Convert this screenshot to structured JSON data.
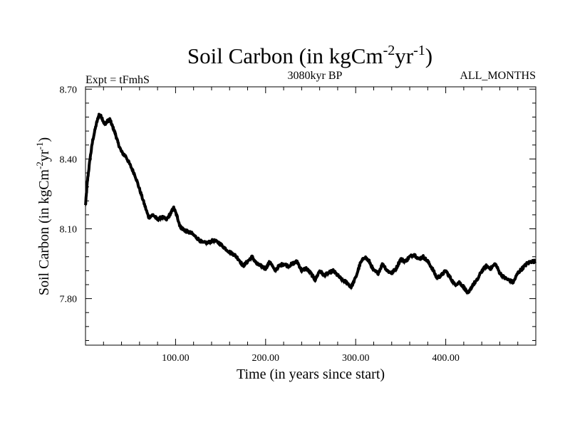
{
  "header": {
    "title_main": "Soil Carbon (in kgCm",
    "title_sup1": "-2",
    "title_mid": "yr",
    "title_sup2": "-1",
    "title_end": ")",
    "left_label": "Expt = tFmhS",
    "center_label": "3080kyr BP",
    "right_label": "ALL_MONTHS"
  },
  "chart_data": {
    "type": "line",
    "title": "Soil Carbon (in kgCm-2yr-1)",
    "xlabel": "Time (in years since start)",
    "ylabel": "Soil Carbon (in kgCm-2yr-1)",
    "xlim": [
      0,
      500
    ],
    "ylim": [
      7.6,
      8.71
    ],
    "x_ticks": [
      100,
      200,
      300,
      400
    ],
    "x_tick_labels": [
      "100.00",
      "200.00",
      "300.00",
      "400.00"
    ],
    "y_ticks": [
      7.8,
      8.1,
      8.4,
      8.7
    ],
    "y_tick_labels": [
      "7.80",
      "8.10",
      "8.40",
      "8.70"
    ],
    "series": [
      {
        "name": "Soil Carbon",
        "color": "#000000",
        "x": [
          0,
          2,
          5,
          8,
          12,
          15,
          18,
          21,
          24,
          27,
          30,
          33,
          36,
          40,
          45,
          50,
          55,
          60,
          65,
          70,
          75,
          80,
          85,
          90,
          95,
          98,
          102,
          105,
          108,
          112,
          118,
          124,
          130,
          136,
          142,
          148,
          154,
          160,
          165,
          170,
          175,
          180,
          185,
          190,
          195,
          200,
          205,
          210,
          215,
          220,
          225,
          230,
          235,
          240,
          245,
          250,
          255,
          260,
          265,
          270,
          275,
          280,
          285,
          290,
          295,
          300,
          305,
          310,
          315,
          320,
          325,
          330,
          335,
          340,
          345,
          350,
          355,
          360,
          365,
          370,
          375,
          380,
          385,
          390,
          395,
          400,
          405,
          410,
          415,
          420,
          425,
          430,
          435,
          440,
          445,
          450,
          455,
          460,
          465,
          470,
          475,
          480,
          485,
          490,
          495,
          500
        ],
        "values": [
          8.2,
          8.3,
          8.4,
          8.48,
          8.55,
          8.59,
          8.58,
          8.55,
          8.56,
          8.57,
          8.54,
          8.51,
          8.47,
          8.43,
          8.41,
          8.37,
          8.33,
          8.27,
          8.21,
          8.15,
          8.16,
          8.14,
          8.15,
          8.14,
          8.17,
          8.19,
          8.15,
          8.11,
          8.1,
          8.09,
          8.08,
          8.06,
          8.04,
          8.04,
          8.05,
          8.04,
          8.02,
          8.0,
          7.99,
          7.97,
          7.94,
          7.96,
          7.98,
          7.95,
          7.94,
          7.93,
          7.96,
          7.92,
          7.94,
          7.95,
          7.94,
          7.95,
          7.96,
          7.92,
          7.93,
          7.91,
          7.88,
          7.92,
          7.9,
          7.91,
          7.92,
          7.9,
          7.88,
          7.87,
          7.85,
          7.89,
          7.95,
          7.98,
          7.96,
          7.92,
          7.91,
          7.95,
          7.92,
          7.91,
          7.93,
          7.97,
          7.96,
          7.98,
          7.99,
          7.97,
          7.98,
          7.96,
          7.93,
          7.89,
          7.9,
          7.92,
          7.89,
          7.86,
          7.87,
          7.85,
          7.82,
          7.86,
          7.88,
          7.92,
          7.94,
          7.93,
          7.95,
          7.91,
          7.89,
          7.88,
          7.87,
          7.91,
          7.93,
          7.95,
          7.96,
          7.96
        ]
      }
    ]
  }
}
